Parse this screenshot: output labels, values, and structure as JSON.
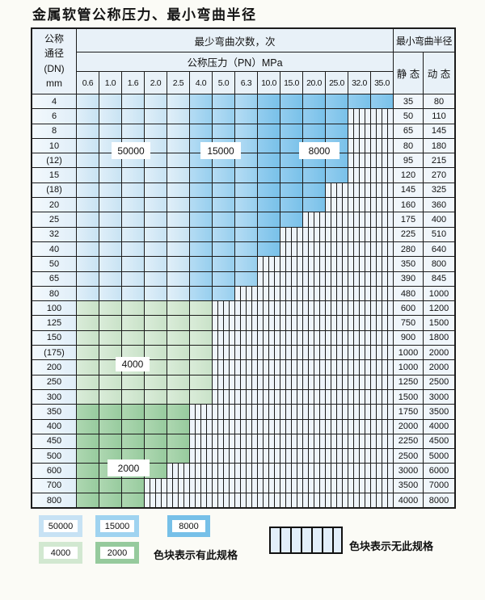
{
  "title": "金属软管公称压力、最小弯曲半径",
  "table": {
    "corner_lines": [
      "公称",
      "通径",
      "(DN)",
      "mm"
    ],
    "bend_cycles_header": "最少弯曲次数，次",
    "pressure_header": "公称压力（PN）MPa",
    "radius_header": "最小弯曲半径",
    "static_header": "静 态",
    "dynamic_header": "动 态",
    "pressure_columns": [
      "0.6",
      "1.0",
      "1.6",
      "2.0",
      "2.5",
      "4.0",
      "5.0",
      "6.3",
      "10.0",
      "15.0",
      "20.0",
      "25.0",
      "32.0",
      "35.0"
    ],
    "rows": [
      {
        "dn": "4",
        "band": "blue",
        "colored": 14,
        "static": "35",
        "dynamic": "80"
      },
      {
        "dn": "6",
        "band": "blue",
        "colored": 12,
        "static": "50",
        "dynamic": "110"
      },
      {
        "dn": "8",
        "band": "blue",
        "colored": 12,
        "static": "65",
        "dynamic": "145"
      },
      {
        "dn": "10",
        "band": "blue",
        "colored": 12,
        "static": "80",
        "dynamic": "180"
      },
      {
        "dn": "(12)",
        "band": "blue",
        "colored": 12,
        "static": "95",
        "dynamic": "215"
      },
      {
        "dn": "15",
        "band": "blue",
        "colored": 12,
        "static": "120",
        "dynamic": "270"
      },
      {
        "dn": "(18)",
        "band": "blue",
        "colored": 11,
        "static": "145",
        "dynamic": "325"
      },
      {
        "dn": "20",
        "band": "blue",
        "colored": 11,
        "static": "160",
        "dynamic": "360"
      },
      {
        "dn": "25",
        "band": "blue",
        "colored": 10,
        "static": "175",
        "dynamic": "400"
      },
      {
        "dn": "32",
        "band": "blue",
        "colored": 9,
        "static": "225",
        "dynamic": "510"
      },
      {
        "dn": "40",
        "band": "blue",
        "colored": 9,
        "static": "280",
        "dynamic": "640"
      },
      {
        "dn": "50",
        "band": "blue",
        "colored": 8,
        "static": "350",
        "dynamic": "800"
      },
      {
        "dn": "65",
        "band": "blue",
        "colored": 8,
        "static": "390",
        "dynamic": "845"
      },
      {
        "dn": "80",
        "band": "blue",
        "colored": 7,
        "static": "480",
        "dynamic": "1000"
      },
      {
        "dn": "100",
        "band": "g4",
        "colored": 6,
        "static": "600",
        "dynamic": "1200"
      },
      {
        "dn": "125",
        "band": "g4",
        "colored": 6,
        "static": "750",
        "dynamic": "1500"
      },
      {
        "dn": "150",
        "band": "g4",
        "colored": 6,
        "static": "900",
        "dynamic": "1800"
      },
      {
        "dn": "(175)",
        "band": "g4",
        "colored": 6,
        "static": "1000",
        "dynamic": "2000"
      },
      {
        "dn": "200",
        "band": "g4",
        "colored": 6,
        "static": "1000",
        "dynamic": "2000"
      },
      {
        "dn": "250",
        "band": "g4",
        "colored": 6,
        "static": "1250",
        "dynamic": "2500"
      },
      {
        "dn": "300",
        "band": "g4",
        "colored": 6,
        "static": "1500",
        "dynamic": "3000"
      },
      {
        "dn": "350",
        "band": "g2",
        "colored": 5,
        "static": "1750",
        "dynamic": "3500"
      },
      {
        "dn": "400",
        "band": "g2",
        "colored": 5,
        "static": "2000",
        "dynamic": "4000"
      },
      {
        "dn": "450",
        "band": "g2",
        "colored": 5,
        "static": "2250",
        "dynamic": "4500"
      },
      {
        "dn": "500",
        "band": "g2",
        "colored": 5,
        "static": "2500",
        "dynamic": "5000"
      },
      {
        "dn": "600",
        "band": "g2",
        "colored": 4,
        "static": "3000",
        "dynamic": "6000"
      },
      {
        "dn": "700",
        "band": "g2",
        "colored": 3,
        "static": "3500",
        "dynamic": "7000"
      },
      {
        "dn": "800",
        "band": "g2",
        "colored": 3,
        "static": "4000",
        "dynamic": "8000"
      }
    ]
  },
  "overlays": [
    "50000",
    "15000",
    "8000",
    "4000",
    "2000"
  ],
  "legend": {
    "swatches": [
      {
        "label": "50000",
        "color": "#c7e2f4"
      },
      {
        "label": "15000",
        "color": "#9fd3f0"
      },
      {
        "label": "8000",
        "color": "#77c0e8"
      },
      {
        "label": "4000",
        "color": "#d2e8d1"
      },
      {
        "label": "2000",
        "color": "#96ca9d"
      }
    ],
    "has_spec_note": "色块表示有此规格",
    "no_spec_note": "色块表示无此规格"
  },
  "colors": {
    "cycles_50000": "#cde6f5",
    "cycles_15000": "#a0d2f0",
    "cycles_8000": "#7fc3ea",
    "cycles_4000": "#cfe5ce",
    "cycles_2000": "#a0cfa6",
    "hatch_background": "#eef4fa",
    "grid_line": "#1c1c1c",
    "header_background": "#e8f1f8"
  }
}
